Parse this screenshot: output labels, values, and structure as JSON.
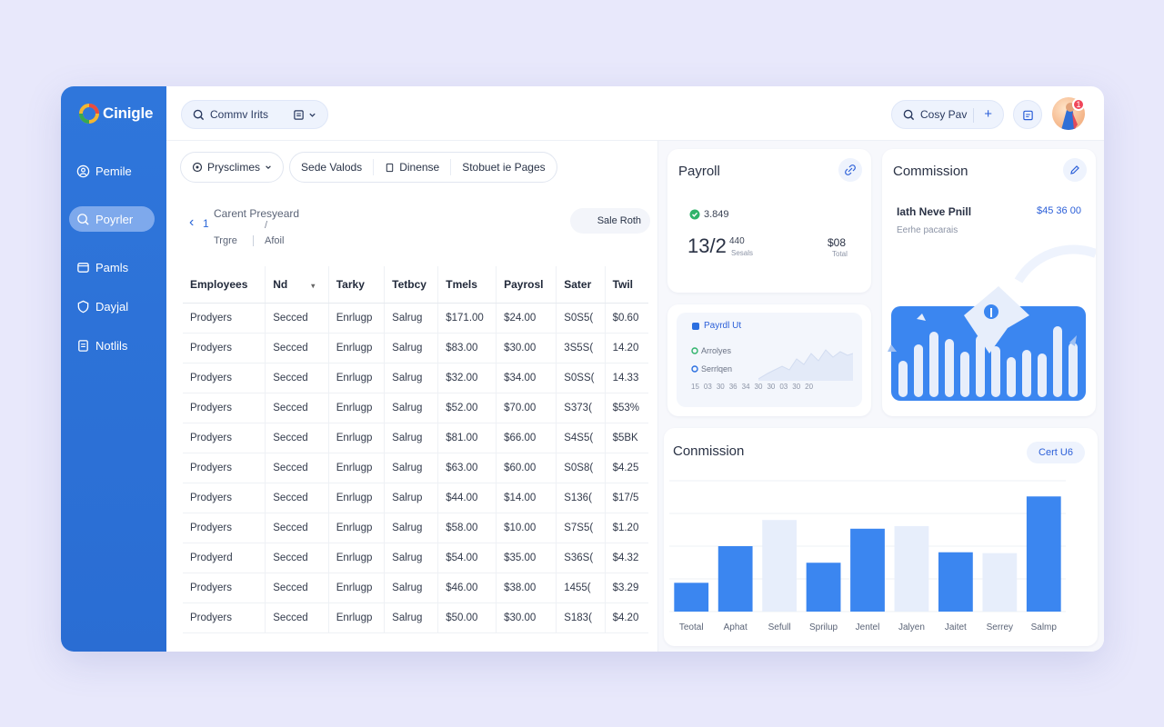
{
  "app": {
    "name": "Cinigle"
  },
  "sidebar": {
    "items": [
      {
        "label": "Pemile",
        "icon": "person-icon"
      },
      {
        "label": "Poyrler",
        "icon": "payroll-icon",
        "active": true
      },
      {
        "label": "Pamls",
        "icon": "folder-icon"
      },
      {
        "label": "Dayjal",
        "icon": "shield-icon"
      },
      {
        "label": "Notlils",
        "icon": "document-icon"
      }
    ]
  },
  "topbar": {
    "search_label": "Commv Irits",
    "copy_label": "Cosy Pav",
    "plus": "+",
    "notification_count": "1"
  },
  "filters": {
    "primary": "Prysclimes",
    "segments": [
      "Sede Valods",
      "Dinense",
      "Stobuet ie Pages"
    ]
  },
  "breadcrumb": {
    "back_number": "1",
    "title": "Carent Presyeard",
    "slash": "/",
    "sub1": "Trgre",
    "sub2": "Afoil"
  },
  "sale_both_label": "Sale Roth",
  "table": {
    "headers": [
      "Employees",
      "Nd",
      "Tarky",
      "Tetbcy",
      "Tmels",
      "Payrosl",
      "Sater",
      "Twil"
    ],
    "rows": [
      [
        "Prodyers",
        "Secced",
        "Enrlugp",
        "Salrug",
        "$171.00",
        "$24.00",
        "S0S5(",
        "$0.60"
      ],
      [
        "Prodyers",
        "Secced",
        "Enrlugp",
        "Salrug",
        "$83.00",
        "$30.00",
        "3S5S(",
        "14.20"
      ],
      [
        "Prodyers",
        "Secced",
        "Enrlugp",
        "Salrug",
        "$32.00",
        "$34.00",
        "S0SS(",
        "14.33"
      ],
      [
        "Prodyers",
        "Secced",
        "Enrlugp",
        "Salrug",
        "$52.00",
        "$70.00",
        "S373(",
        "$53%"
      ],
      [
        "Prodyers",
        "Secced",
        "Enrlugp",
        "Salrug",
        "$81.00",
        "$66.00",
        "S4S5(",
        "$5BK"
      ],
      [
        "Prodyers",
        "Secced",
        "Enrlugp",
        "Salrug",
        "$63.00",
        "$60.00",
        "S0S8(",
        "$4.25"
      ],
      [
        "Prodyers",
        "Secced",
        "Enrlugp",
        "Salrup",
        "$44.00",
        "$14.00",
        "S136(",
        "$17/5"
      ],
      [
        "Prodyers",
        "Secced",
        "Enrlugp",
        "Salrug",
        "$58.00",
        "$10.00",
        "S7S5(",
        "$1.20"
      ],
      [
        "Prodyerd",
        "Secced",
        "Enrlugp",
        "Salrug",
        "$54.00",
        "$35.00",
        "S36S(",
        "$4.32"
      ],
      [
        "Prodyers",
        "Secced",
        "Enrlugp",
        "Salrug",
        "$46.00",
        "$38.00",
        "1455(",
        "$3.29"
      ],
      [
        "Prodyers",
        "Secced",
        "Enrlugp",
        "Salrug",
        "$50.00",
        "$30.00",
        "S183(",
        "$4.20"
      ]
    ]
  },
  "payroll_card": {
    "title": "Payroll",
    "status": "3.849",
    "big_value": "13/2",
    "big_sup": "440",
    "big_caption": "Sesals",
    "right_value": "$08",
    "right_caption": "Total"
  },
  "payroll_ut_card": {
    "title": "Payrdl Ut",
    "legend": [
      "Arrolyes",
      "Serrlqen"
    ],
    "axis": [
      "15",
      "03",
      "30",
      "36",
      "34",
      "30",
      "30",
      "03",
      "30",
      "20"
    ]
  },
  "commission_card": {
    "title": "Commission",
    "subtitle": "Iath Neve Pnill",
    "amount": "$45 36 00",
    "caption": "Eerhe pacarais"
  },
  "chart_data": {
    "type": "bar",
    "title": "Conmission",
    "categories": [
      "Teotal",
      "Aphat",
      "Sefull",
      "Sprilup",
      "Jentel",
      "Jalyen",
      "Jaitet",
      "Serrey",
      "Salmp"
    ],
    "values": [
      33,
      75,
      105,
      56,
      95,
      98,
      68,
      67,
      132
    ],
    "highlight": [
      true,
      true,
      false,
      true,
      true,
      false,
      true,
      false,
      true
    ],
    "ylim": [
      0,
      150
    ],
    "grid": true,
    "colors": {
      "primary": "#3b86f0",
      "muted": "#e7eefb"
    }
  },
  "chart_button": "Cert U6",
  "colors": {
    "accent": "#2f76db",
    "background": "#e8e8fb"
  }
}
